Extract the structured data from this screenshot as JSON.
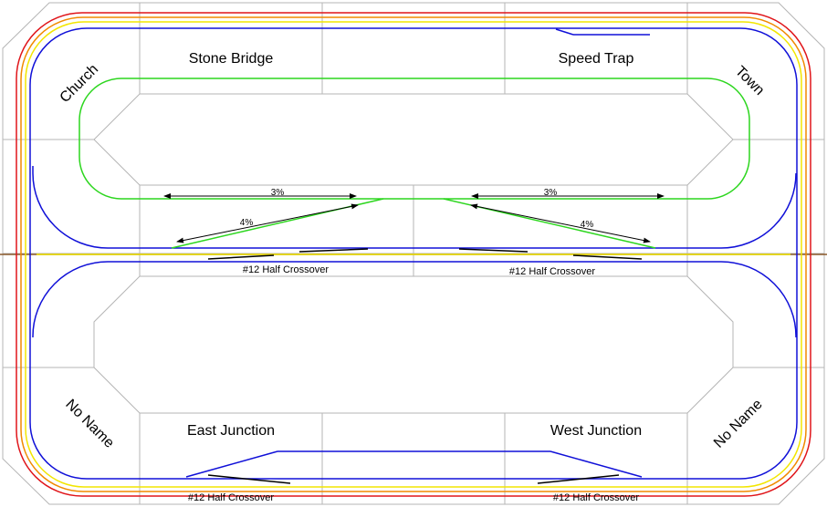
{
  "labels": {
    "stone_bridge": "Stone Bridge",
    "speed_trap": "Speed Trap",
    "church": "Church",
    "town": "Town",
    "east_junction": "East Junction",
    "west_junction": "West Junction",
    "no_name_left": "No Name",
    "no_name_right": "No Name",
    "crossover_center_left": "#12 Half Crossover",
    "crossover_center_right": "#12 Half Crossover",
    "crossover_bottom_left": "#12 Half Crossover",
    "crossover_bottom_right": "#12 Half Crossover",
    "grade_left_3": "3%",
    "grade_right_3": "3%",
    "grade_left_4": "4%",
    "grade_right_4": "4%"
  },
  "colors": {
    "benchwork": "#b5b5b5",
    "outer_main_red": "#e0151a",
    "middle_main_yellow": "#f2e600",
    "orange_main": "#f08a00",
    "inner_main_blue": "#1010d8",
    "upper_loop_green": "#2cd61e",
    "dimension_arrows": "#000000",
    "crossover_lines": "#000000",
    "center_cross_track": "#8b5a2b"
  }
}
